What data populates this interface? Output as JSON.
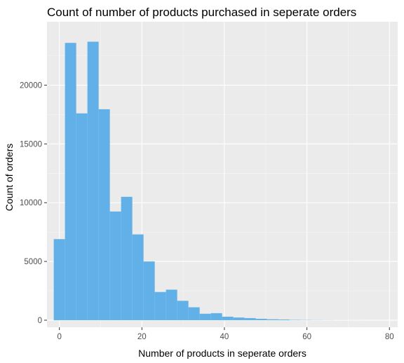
{
  "chart_data": {
    "type": "bar",
    "title": "Count of number of products purchased in seperate orders",
    "xlabel": "Number of products in seperate orders",
    "ylabel": "Count of orders",
    "xlim": [
      -3,
      82
    ],
    "ylim": [
      -600,
      25400
    ],
    "x_ticks": [
      0,
      20,
      40,
      60,
      80
    ],
    "x_tick_labels": [
      "0",
      "20",
      "40",
      "60",
      "80"
    ],
    "y_ticks": [
      0,
      5000,
      10000,
      15000,
      20000
    ],
    "y_tick_labels": [
      "0",
      "5000",
      "10000",
      "15000",
      "20000"
    ],
    "bin_width": 2.72,
    "bins": [
      {
        "start": -1.36,
        "count": 6900
      },
      {
        "start": 1.36,
        "count": 23600
      },
      {
        "start": 4.08,
        "count": 17600
      },
      {
        "start": 6.8,
        "count": 23700
      },
      {
        "start": 9.52,
        "count": 17950
      },
      {
        "start": 12.24,
        "count": 9250
      },
      {
        "start": 14.96,
        "count": 10500
      },
      {
        "start": 17.68,
        "count": 7300
      },
      {
        "start": 20.4,
        "count": 5000
      },
      {
        "start": 23.12,
        "count": 2400
      },
      {
        "start": 25.84,
        "count": 2600
      },
      {
        "start": 28.56,
        "count": 1650
      },
      {
        "start": 31.28,
        "count": 1100
      },
      {
        "start": 34.0,
        "count": 550
      },
      {
        "start": 36.72,
        "count": 600
      },
      {
        "start": 39.44,
        "count": 300
      },
      {
        "start": 42.16,
        "count": 230
      },
      {
        "start": 44.88,
        "count": 180
      },
      {
        "start": 47.6,
        "count": 120
      },
      {
        "start": 50.32,
        "count": 80
      },
      {
        "start": 53.04,
        "count": 60
      },
      {
        "start": 55.76,
        "count": 30
      },
      {
        "start": 58.48,
        "count": 20
      },
      {
        "start": 61.2,
        "count": 12
      },
      {
        "start": 63.92,
        "count": 8
      },
      {
        "start": 66.64,
        "count": 5
      },
      {
        "start": 69.36,
        "count": 3
      },
      {
        "start": 72.08,
        "count": 2
      },
      {
        "start": 74.8,
        "count": 1
      },
      {
        "start": 77.52,
        "count": 1
      }
    ],
    "grid": true,
    "colors": {
      "bar": "#62b0e8",
      "panel_background": "#ebebeb",
      "grid_major": "#ffffff",
      "grid_minor": "#f5f5f5"
    }
  }
}
